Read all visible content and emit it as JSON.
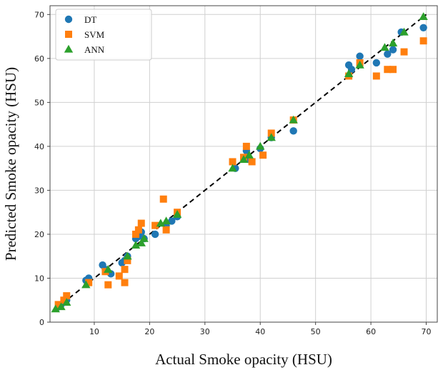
{
  "chart_data": {
    "type": "scatter",
    "title": "",
    "xlabel": "Actual Smoke opacity (HSU)",
    "ylabel": "Predicted Smoke opacity (HSU)",
    "xlim": [
      2,
      72
    ],
    "ylim": [
      0,
      72
    ],
    "xticks": [
      0,
      10,
      20,
      30,
      40,
      50,
      60,
      70
    ],
    "yticks": [
      0,
      10,
      20,
      30,
      40,
      50,
      60,
      70
    ],
    "grid": true,
    "legend_position": "top-left",
    "reference_line": {
      "style": "dashed",
      "color": "#000000",
      "from": [
        3,
        3
      ],
      "to": [
        70,
        70
      ]
    },
    "series": [
      {
        "name": "DT",
        "marker": "circle",
        "color": "#1f77b4",
        "points": [
          [
            3.5,
            3.5
          ],
          [
            4,
            4
          ],
          [
            5,
            5
          ],
          [
            8.5,
            9.5
          ],
          [
            9,
            10
          ],
          [
            11.5,
            13
          ],
          [
            12,
            12
          ],
          [
            13,
            11
          ],
          [
            15,
            13.5
          ],
          [
            15.5,
            14
          ],
          [
            16,
            15
          ],
          [
            17.5,
            19
          ],
          [
            18,
            19.5
          ],
          [
            18.5,
            20.5
          ],
          [
            19,
            19
          ],
          [
            21,
            20
          ],
          [
            23,
            22
          ],
          [
            24,
            23
          ],
          [
            25,
            24
          ],
          [
            35.5,
            35
          ],
          [
            37.5,
            39
          ],
          [
            38,
            37
          ],
          [
            40,
            39.5
          ],
          [
            42,
            42
          ],
          [
            46,
            43.5
          ],
          [
            56,
            58.5
          ],
          [
            56.5,
            57.5
          ],
          [
            58,
            60.5
          ],
          [
            61,
            59
          ],
          [
            63,
            61
          ],
          [
            64,
            62
          ],
          [
            65.5,
            66
          ],
          [
            69.5,
            67
          ]
        ]
      },
      {
        "name": "SVM",
        "marker": "square",
        "color": "#ff7f0e",
        "points": [
          [
            3.5,
            4
          ],
          [
            4.5,
            5
          ],
          [
            5,
            6
          ],
          [
            9,
            9
          ],
          [
            12,
            11.5
          ],
          [
            12.5,
            8.5
          ],
          [
            14.5,
            10.5
          ],
          [
            15.5,
            9
          ],
          [
            15.5,
            12
          ],
          [
            16,
            14
          ],
          [
            17.5,
            20
          ],
          [
            18,
            21
          ],
          [
            18.5,
            22.5
          ],
          [
            21,
            22
          ],
          [
            22.5,
            28
          ],
          [
            23,
            21
          ],
          [
            25,
            25
          ],
          [
            35,
            36.5
          ],
          [
            37,
            37.5
          ],
          [
            37.5,
            40
          ],
          [
            38.5,
            36.5
          ],
          [
            40.5,
            38
          ],
          [
            42,
            43
          ],
          [
            46,
            46
          ],
          [
            56,
            56
          ],
          [
            58,
            59
          ],
          [
            61,
            56
          ],
          [
            63,
            57.5
          ],
          [
            64,
            57.5
          ],
          [
            66,
            61.5
          ],
          [
            69.5,
            64
          ]
        ]
      },
      {
        "name": "ANN",
        "marker": "triangle",
        "color": "#2ca02c",
        "points": [
          [
            3,
            3
          ],
          [
            4,
            3.5
          ],
          [
            5,
            4.5
          ],
          [
            8.5,
            8.5
          ],
          [
            12.5,
            12
          ],
          [
            16,
            15
          ],
          [
            17.5,
            17.5
          ],
          [
            18.5,
            18
          ],
          [
            19,
            19
          ],
          [
            22,
            22.5
          ],
          [
            23,
            23
          ],
          [
            25,
            24.5
          ],
          [
            35,
            35
          ],
          [
            37,
            37
          ],
          [
            38,
            38
          ],
          [
            40,
            40
          ],
          [
            42,
            42
          ],
          [
            46,
            46
          ],
          [
            56,
            56.5
          ],
          [
            58,
            58.5
          ],
          [
            62.5,
            62.5
          ],
          [
            64,
            63.5
          ],
          [
            66,
            66
          ],
          [
            69.5,
            69.5
          ]
        ]
      }
    ]
  }
}
